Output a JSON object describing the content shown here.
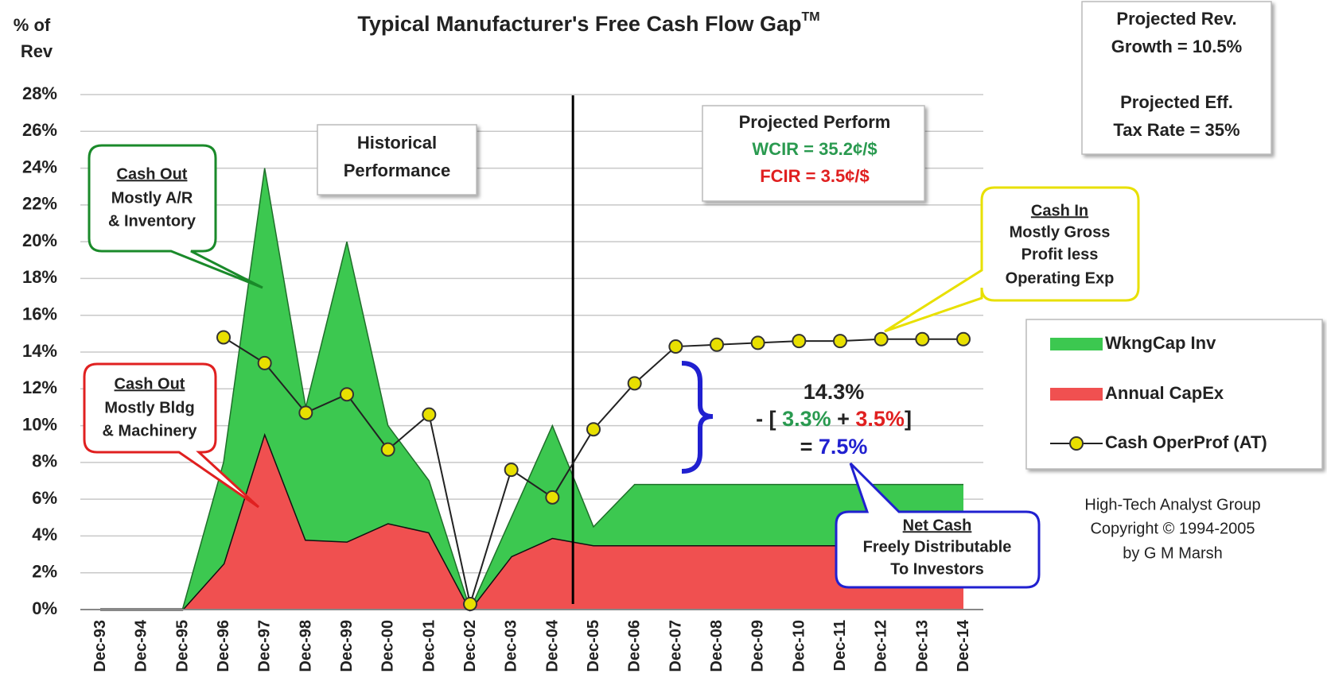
{
  "chart_data": {
    "type": "area",
    "title": "Typical Manufacturer's Free Cash Flow Gap",
    "title_mark": "TM",
    "y_label": [
      "% of",
      "Rev"
    ],
    "categories": [
      "Dec-93",
      "Dec-94",
      "Dec-95",
      "Dec-96",
      "Dec-97",
      "Dec-98",
      "Dec-99",
      "Dec-00",
      "Dec-01",
      "Dec-02",
      "Dec-03",
      "Dec-04",
      "Dec-05",
      "Dec-06",
      "Dec-07",
      "Dec-08",
      "Dec-09",
      "Dec-10",
      "Dec-11",
      "Dec-12",
      "Dec-13",
      "Dec-14"
    ],
    "series": [
      {
        "name": "Annual CapEx",
        "color": "#f05050",
        "kind": "area",
        "values": [
          0,
          0,
          0,
          2.5,
          9.6,
          3.8,
          3.7,
          4.7,
          4.2,
          0,
          2.9,
          3.9,
          3.5,
          3.5,
          3.5,
          3.5,
          3.5,
          3.5,
          3.5,
          3.5,
          3.5,
          3.5
        ]
      },
      {
        "name": "WkngCap Inv",
        "color": "#3cc850",
        "kind": "area",
        "values": [
          0,
          0,
          0,
          5.5,
          14.4,
          7.2,
          16.3,
          5.3,
          2.8,
          0,
          2.1,
          6.1,
          1.0,
          3.3,
          3.3,
          3.3,
          3.3,
          3.3,
          3.3,
          3.3,
          3.3,
          3.3
        ]
      },
      {
        "name": "Cash OperProf (AT)",
        "color": "#e8e000",
        "kind": "line",
        "values": [
          null,
          null,
          null,
          14.8,
          13.4,
          10.7,
          11.7,
          8.7,
          10.6,
          0.3,
          7.6,
          6.1,
          9.8,
          12.3,
          14.3,
          14.4,
          14.5,
          14.6,
          14.6,
          14.7,
          14.7,
          14.7
        ]
      }
    ],
    "ylim": [
      0,
      28
    ],
    "yticks": [
      {
        "value": 0,
        "label": "0%"
      },
      {
        "value": 2,
        "label": "2%"
      },
      {
        "value": 4,
        "label": "4%"
      },
      {
        "value": 6,
        "label": "6%"
      },
      {
        "value": 8,
        "label": "8%"
      },
      {
        "value": 10,
        "label": "10%"
      },
      {
        "value": 12,
        "label": "12%"
      },
      {
        "value": 14,
        "label": "14%"
      },
      {
        "value": 16,
        "label": "16%"
      },
      {
        "value": 18,
        "label": "18%"
      },
      {
        "value": 20,
        "label": "20%"
      },
      {
        "value": 22,
        "label": "22%"
      },
      {
        "value": 24,
        "label": "24%"
      },
      {
        "value": 26,
        "label": "26%"
      },
      {
        "value": 28,
        "label": "28%"
      }
    ],
    "grid": true,
    "divider_at": 11.5,
    "annotations": {
      "projection_box": [
        "Projected Rev.",
        "Growth = 10.5%",
        "Projected Eff.",
        "Tax Rate = 35%"
      ],
      "historical": [
        "Historical",
        "Performance"
      ],
      "projected": {
        "title": "Projected Perform",
        "wcir": "WCIR = 35.2¢/$",
        "fcir": "FCIR = 3.5¢/$"
      },
      "cash_out_wc": {
        "title": "Cash Out",
        "lines": [
          "Mostly A/R",
          "& Inventory"
        ]
      },
      "cash_out_capex": {
        "title": "Cash Out",
        "lines": [
          "Mostly Bldg",
          "& Machinery"
        ]
      },
      "cash_in": {
        "title": "Cash In",
        "lines": [
          "Mostly Gross",
          "Profit less",
          "Operating Exp"
        ]
      },
      "net_cash": {
        "title": "Net Cash",
        "lines": [
          "Freely Distributable",
          "To Investors"
        ]
      },
      "equation": {
        "top": "14.3%",
        "open": "- [ ",
        "wc": "3.3%",
        "plus": " + ",
        "capex": "3.5%",
        "close": "]",
        "eq": "= ",
        "result": "7.5%"
      },
      "credits": [
        "High-Tech Analyst Group",
        "Copyright © 1994-2005",
        "by G M Marsh"
      ]
    }
  }
}
